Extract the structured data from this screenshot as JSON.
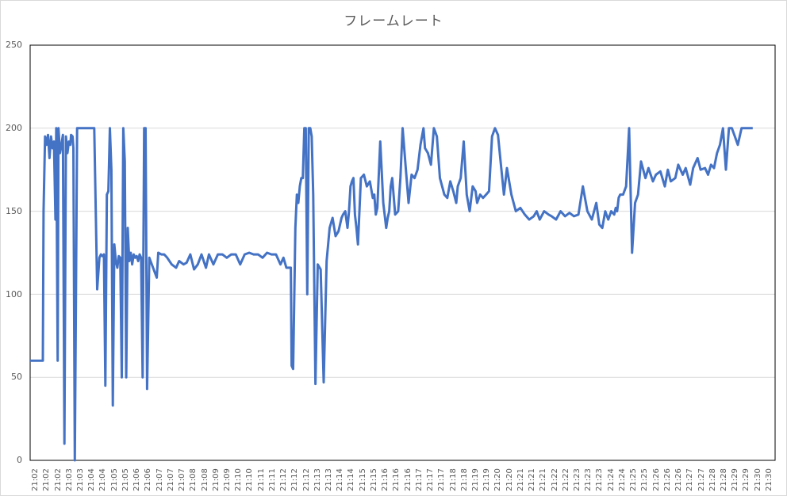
{
  "chart_data": {
    "type": "line",
    "title": "フレームレート",
    "xlabel": "",
    "ylabel": "",
    "ylim": [
      0,
      250
    ],
    "yticks": [
      0,
      50,
      100,
      150,
      200,
      250
    ],
    "grid": true,
    "legend": "none",
    "line_color": "#4472c4",
    "categories": [
      "21:02",
      "21:02",
      "21:02",
      "21:03",
      "21:03",
      "21:04",
      "21:04",
      "21:05",
      "21:05",
      "21:06",
      "21:06",
      "21:07",
      "21:07",
      "21:07",
      "21:08",
      "21:08",
      "21:09",
      "21:09",
      "21:10",
      "21:10",
      "21:11",
      "21:11",
      "21:12",
      "21:12",
      "21:12",
      "21:13",
      "21:13",
      "21:14",
      "21:14",
      "21:15",
      "21:15",
      "21:16",
      "21:16",
      "21:16",
      "21:17",
      "21:17",
      "21:17",
      "21:18",
      "21:18",
      "21:19",
      "21:19",
      "21:20",
      "21:20",
      "21:21",
      "21:21",
      "21:21",
      "21:22",
      "21:22",
      "21:23",
      "21:23",
      "21:23",
      "21:24",
      "21:24",
      "21:25",
      "21:25",
      "21:26",
      "21:26",
      "21:26",
      "21:27",
      "21:27",
      "21:28",
      "21:28",
      "21:29",
      "21:29",
      "21:30",
      "21:30"
    ],
    "series": [
      {
        "name": "フレームレート",
        "x_frac": [
          0.0,
          0.016,
          0.017,
          0.018,
          0.02,
          0.022,
          0.024,
          0.026,
          0.028,
          0.03,
          0.032,
          0.034,
          0.035,
          0.037,
          0.038,
          0.04,
          0.042,
          0.044,
          0.046,
          0.048,
          0.05,
          0.052,
          0.054,
          0.055,
          0.057,
          0.058,
          0.06,
          0.063,
          0.08,
          0.082,
          0.084,
          0.086,
          0.09,
          0.093,
          0.095,
          0.097,
          0.099,
          0.101,
          0.103,
          0.105,
          0.107,
          0.109,
          0.111,
          0.113,
          0.115,
          0.117,
          0.119,
          0.121,
          0.123,
          0.125,
          0.127,
          0.129,
          0.131,
          0.133,
          0.135,
          0.137,
          0.139,
          0.141,
          0.143,
          0.145,
          0.147,
          0.149,
          0.151,
          0.153,
          0.155,
          0.157,
          0.16,
          0.17,
          0.172,
          0.176,
          0.18,
          0.184,
          0.19,
          0.196,
          0.2,
          0.206,
          0.21,
          0.215,
          0.22,
          0.225,
          0.23,
          0.236,
          0.24,
          0.246,
          0.252,
          0.258,
          0.264,
          0.27,
          0.276,
          0.282,
          0.288,
          0.294,
          0.3,
          0.306,
          0.312,
          0.318,
          0.324,
          0.33,
          0.336,
          0.34,
          0.344,
          0.348,
          0.35,
          0.351,
          0.353,
          0.356,
          0.358,
          0.36,
          0.362,
          0.364,
          0.366,
          0.368,
          0.37,
          0.372,
          0.374,
          0.376,
          0.378,
          0.38,
          0.383,
          0.386,
          0.39,
          0.394,
          0.398,
          0.402,
          0.406,
          0.41,
          0.414,
          0.418,
          0.42,
          0.423,
          0.426,
          0.428,
          0.43,
          0.432,
          0.434,
          0.436,
          0.438,
          0.44,
          0.444,
          0.448,
          0.452,
          0.456,
          0.46,
          0.462,
          0.464,
          0.466,
          0.47,
          0.474,
          0.478,
          0.48,
          0.482,
          0.484,
          0.486,
          0.49,
          0.494,
          0.497,
          0.5,
          0.504,
          0.508,
          0.512,
          0.516,
          0.52,
          0.524,
          0.528,
          0.53,
          0.534,
          0.538,
          0.542,
          0.546,
          0.55,
          0.556,
          0.56,
          0.564,
          0.568,
          0.572,
          0.574,
          0.578,
          0.582,
          0.586,
          0.59,
          0.594,
          0.598,
          0.6,
          0.604,
          0.608,
          0.612,
          0.616,
          0.62,
          0.624,
          0.628,
          0.632,
          0.636,
          0.64,
          0.646,
          0.652,
          0.658,
          0.664,
          0.67,
          0.676,
          0.68,
          0.684,
          0.69,
          0.696,
          0.7,
          0.706,
          0.712,
          0.718,
          0.724,
          0.73,
          0.736,
          0.742,
          0.748,
          0.754,
          0.76,
          0.764,
          0.768,
          0.772,
          0.776,
          0.78,
          0.784,
          0.786,
          0.788,
          0.79,
          0.792,
          0.796,
          0.8,
          0.804,
          0.808,
          0.812,
          0.816,
          0.82,
          0.826,
          0.83,
          0.836,
          0.84,
          0.846,
          0.852,
          0.856,
          0.86,
          0.866,
          0.87,
          0.876,
          0.88,
          0.886,
          0.89,
          0.896,
          0.9,
          0.906,
          0.91,
          0.914,
          0.918,
          0.922,
          0.926,
          0.93,
          0.934,
          0.938,
          0.942,
          0.946,
          0.95,
          0.955,
          0.96,
          0.965,
          0.97,
          0.975,
          0.98,
          0.986,
          0.992,
          1.0
        ],
        "values": [
          60,
          60,
          60,
          150,
          195,
          190,
          196,
          182,
          195,
          188,
          192,
          145,
          200,
          60,
          200,
          185,
          190,
          196,
          10,
          195,
          185,
          192,
          190,
          196,
          195,
          188,
          0,
          200,
          200,
          200,
          200,
          200,
          103,
          122,
          124,
          123,
          124,
          45,
          160,
          162,
          200,
          175,
          33,
          130,
          120,
          116,
          123,
          122,
          50,
          200,
          180,
          50,
          140,
          120,
          125,
          118,
          124,
          122,
          123,
          120,
          124,
          122,
          50,
          200,
          200,
          43,
          122,
          110,
          125,
          124,
          124,
          122,
          118,
          116,
          120,
          118,
          119,
          124,
          115,
          118,
          124,
          116,
          124,
          118,
          124,
          124,
          122,
          124,
          124,
          118,
          124,
          125,
          124,
          124,
          122,
          125,
          124,
          124,
          118,
          122,
          116,
          116,
          116,
          57,
          55,
          140,
          160,
          155,
          165,
          170,
          170,
          200,
          200,
          100,
          200,
          200,
          195,
          160,
          46,
          118,
          115,
          47,
          120,
          140,
          146,
          135,
          138,
          146,
          148,
          150,
          140,
          150,
          165,
          168,
          170,
          148,
          140,
          130,
          170,
          172,
          165,
          168,
          158,
          160,
          148,
          152,
          192,
          155,
          140,
          146,
          150,
          165,
          170,
          148,
          150,
          170,
          200,
          177,
          155,
          172,
          170,
          175,
          190,
          200,
          188,
          185,
          178,
          200,
          195,
          170,
          160,
          158,
          168,
          162,
          155,
          165,
          170,
          192,
          160,
          150,
          165,
          162,
          155,
          160,
          158,
          160,
          162,
          195,
          200,
          196,
          178,
          160,
          176,
          160,
          150,
          152,
          148,
          145,
          147,
          150,
          145,
          150,
          148,
          147,
          145,
          150,
          147,
          149,
          147,
          148,
          165,
          150,
          145,
          155,
          142,
          140,
          150,
          145,
          150,
          148,
          152,
          150,
          158,
          160,
          160,
          165,
          200,
          125,
          155,
          160,
          180,
          170,
          176,
          168,
          172,
          174,
          165,
          175,
          168,
          170,
          178,
          172,
          176,
          166,
          176,
          182,
          175,
          176,
          172,
          178,
          176,
          185,
          190,
          200,
          175,
          200,
          200,
          195,
          190,
          200,
          200,
          200,
          200
        ]
      }
    ]
  },
  "y_axis": {
    "labels": [
      "250",
      "200",
      "150",
      "100",
      "50",
      "0"
    ]
  }
}
